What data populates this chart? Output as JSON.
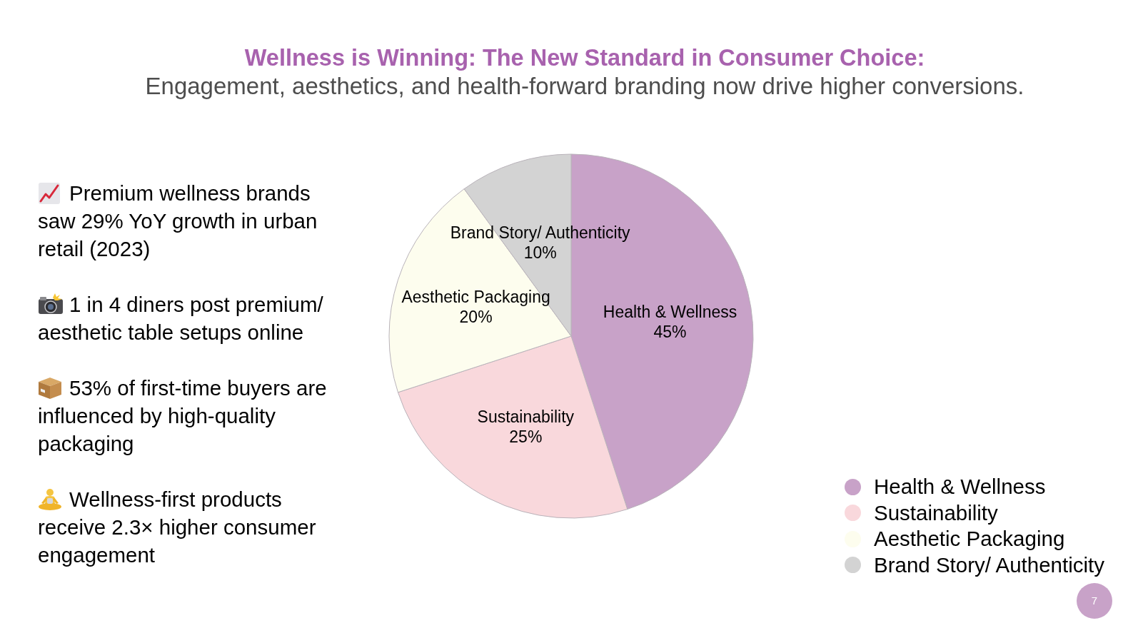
{
  "chart_data": {
    "type": "pie",
    "title": "Wellness is Winning: The New Standard in Consumer Choice:",
    "subtitle": "Engagement, aesthetics, and health-forward branding now drive higher conversions.",
    "categories": [
      "Health & Wellness",
      "Sustainability",
      "Aesthetic Packaging",
      "Brand Story/ Authenticity"
    ],
    "values": [
      45,
      25,
      20,
      10
    ],
    "value_labels": [
      "45%",
      "25%",
      "20%",
      "10%"
    ],
    "colors": [
      "#c8a2c8",
      "#f9d8dc",
      "#fdfdee",
      "#d3d3d3"
    ],
    "legend": "bottom right",
    "annotations": [
      "Premium wellness brands saw 29% YoY growth in urban retail (2023)",
      "1 in 4 diners post premium/ aesthetic table setups online",
      "53% of first-time buyers are influenced by high-quality packaging",
      "Wellness-first products receive 2.3× higher consumer engagement",
      "7"
    ]
  }
}
